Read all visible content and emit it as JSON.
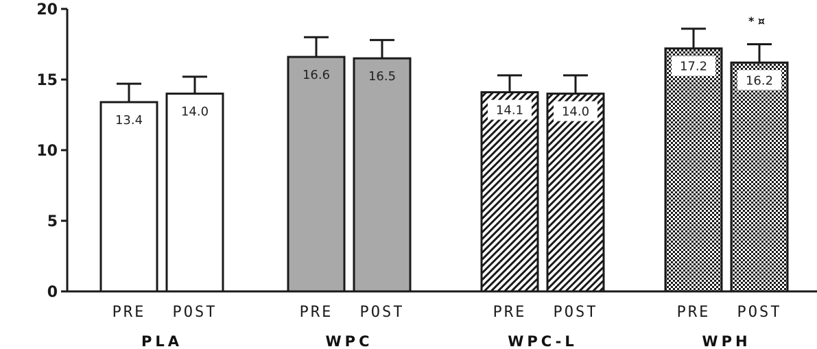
{
  "chart_data": {
    "type": "bar",
    "title": "",
    "xlabel": "",
    "ylabel": "",
    "ylim": [
      0,
      20
    ],
    "yticks": [
      0,
      5,
      10,
      15,
      20
    ],
    "periods": [
      "PRE",
      "POST"
    ],
    "groups": [
      {
        "name": "PLA",
        "pattern": "white",
        "values": [
          13.4,
          14.0
        ],
        "labels": [
          "13.4",
          "14.0"
        ],
        "errors": [
          1.3,
          1.2
        ]
      },
      {
        "name": "WPC",
        "pattern": "gray",
        "values": [
          16.6,
          16.5
        ],
        "labels": [
          "16.6",
          "16.5"
        ],
        "errors": [
          1.4,
          1.3
        ]
      },
      {
        "name": "WPC-L",
        "pattern": "diagonal",
        "values": [
          14.1,
          14.0
        ],
        "labels": [
          "14.1",
          "14.0"
        ],
        "errors": [
          1.2,
          1.3
        ]
      },
      {
        "name": "WPH",
        "pattern": "checker",
        "values": [
          17.2,
          16.2
        ],
        "labels": [
          "17.2",
          "16.2"
        ],
        "errors": [
          1.4,
          1.3
        ]
      }
    ],
    "annotation": {
      "group": "WPH",
      "period": "POST",
      "text": "* ¤"
    },
    "grid": false,
    "legend": "none",
    "colors": {
      "gray_fill": "#a9a9a9",
      "bar_stroke": "#1a1a1a",
      "axis": "#1a1a1a"
    }
  }
}
